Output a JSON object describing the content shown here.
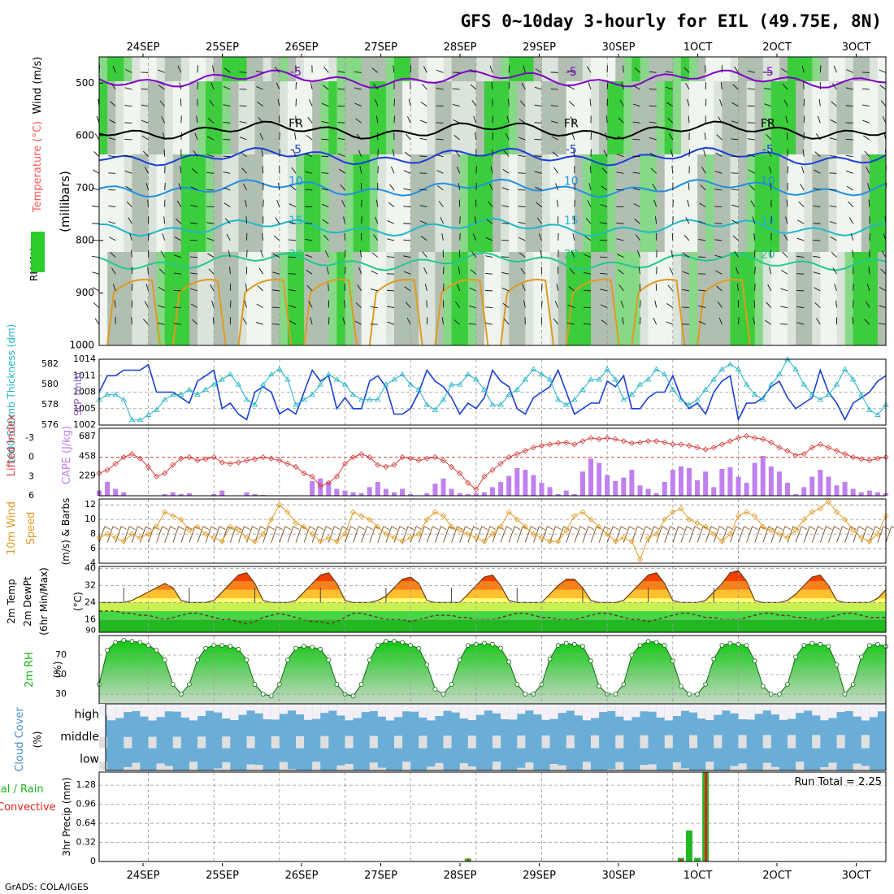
{
  "title": "GFS 0~10day 3-hourly for EIL (49.75E, 8N)",
  "footer": "GrADS: COLA/IGES",
  "dates": [
    "24SEP",
    "25SEP",
    "26SEP",
    "27SEP",
    "28SEP",
    "29SEP",
    "30SEP",
    "1OCT",
    "2OCT",
    "3OCT"
  ],
  "colors": {
    "frame": "#000000",
    "grid": "#9a9a9a",
    "purple": "#8000c8",
    "blue": "#1a3fd6",
    "cyan": "#20b4c8",
    "green_rh": "#2ccc2c",
    "orange": "#e09a20",
    "lifted": "#d83c3c",
    "cape": "#c080f0",
    "sky": "#6aaed8"
  },
  "chart_data": [
    {
      "panel": "upper_air",
      "type": "heatmap",
      "ylabel": "(millibars)",
      "side_labels": [
        "RH (%)",
        "Temperature (°C)",
        "Wind (m/s)"
      ],
      "y_ticks": [
        500,
        600,
        700,
        800,
        900,
        1000
      ],
      "ylim": [
        1000,
        450
      ],
      "isotherms": [
        {
          "label": "-5",
          "pressure_mb": 492
        },
        {
          "label": "FR",
          "pressure_mb": 590
        },
        {
          "label": "-5",
          "pressure_mb": 640
        },
        {
          "label": "10",
          "pressure_mb": 700
        },
        {
          "label": "15",
          "pressure_mb": 775
        },
        {
          "label": "20",
          "pressure_mb": 840
        }
      ]
    },
    {
      "panel": "slp_thickness",
      "type": "line",
      "ylabel_left": "1000-500mb Thickness (dm)",
      "ylabel_right": "SLP (mb)",
      "left_ticks": [
        576,
        578,
        580,
        582
      ],
      "right_ticks": [
        1002,
        1005,
        1008,
        1011,
        1014
      ],
      "series": [
        {
          "name": "SLP (mb)",
          "values": [
            1008,
            1011,
            1011,
            1012,
            1012,
            1012,
            1013,
            1008,
            1008,
            1008,
            1007,
            1006,
            1010,
            1011,
            1012,
            1005,
            1006,
            1004,
            1003,
            1008,
            1009,
            1008,
            1004,
            1005,
            1004,
            1008,
            1012,
            1010,
            1011,
            1005,
            1007,
            1005,
            1005,
            1010,
            1011,
            1009,
            1004,
            1004,
            1005,
            1008,
            1012,
            1010,
            1009,
            1007,
            1004,
            1006,
            1005,
            1007,
            1012,
            1010,
            1009,
            1005,
            1004,
            1007,
            1008,
            1009,
            1012,
            1008,
            1004,
            1005,
            1006,
            1006,
            1010,
            1009,
            1011,
            1005,
            1005,
            1007,
            1008,
            1008,
            1011,
            1007,
            1005,
            1006,
            1004,
            1008,
            1010,
            1011,
            1003,
            1006,
            1006,
            1007,
            1009,
            1010,
            1007,
            1005,
            1006,
            1007,
            1012,
            1008,
            1006,
            1003,
            1006,
            1007,
            1008,
            1010,
            1011
          ]
        },
        {
          "name": "1000-500mb Thickness (dm)",
          "values": [
            578.5,
            579,
            579,
            578.5,
            576.5,
            576.5,
            577,
            577.5,
            578.5,
            579,
            579,
            579.5,
            579,
            579.5,
            580,
            580.5,
            581,
            580,
            578.5,
            578,
            580,
            581,
            581.5,
            580.5,
            578,
            578.5,
            579,
            580,
            581,
            580.5,
            580,
            579,
            578.5,
            578.5,
            578.5,
            580,
            580.5,
            581,
            580,
            579.5,
            578,
            577.5,
            578.5,
            580,
            580,
            581,
            580.5,
            579.5,
            578,
            578,
            579,
            579.5,
            580.5,
            581.5,
            581,
            580.5,
            578.5,
            578,
            578.5,
            579.5,
            580.5,
            580.5,
            581.5,
            580.5,
            578.5,
            579,
            580,
            580.5,
            581.5,
            581,
            579.5,
            578.5,
            578,
            578.5,
            579.5,
            580.5,
            581.5,
            582,
            581.5,
            580,
            579,
            578.5,
            580,
            581,
            582.5,
            581.5,
            580,
            579,
            578.5,
            579,
            580,
            581.5,
            580.5,
            579,
            577.5,
            577,
            578
          ]
        }
      ]
    },
    {
      "panel": "cape_li",
      "type": "bar",
      "ylabel_left": "Lifted Index",
      "ylabel_right": "CAPE (J/kg)",
      "li_ticks": [
        -3,
        0,
        3,
        6
      ],
      "cape_ticks": [
        229,
        458,
        687
      ],
      "cape_values": [
        60,
        160,
        80,
        40,
        0,
        0,
        0,
        0,
        20,
        40,
        20,
        30,
        0,
        0,
        20,
        60,
        0,
        0,
        40,
        20,
        10,
        0,
        0,
        0,
        0,
        0,
        170,
        200,
        160,
        80,
        60,
        40,
        30,
        100,
        160,
        80,
        40,
        80,
        20,
        0,
        30,
        140,
        200,
        80,
        30,
        20,
        30,
        40,
        100,
        160,
        230,
        320,
        300,
        240,
        150,
        100,
        20,
        60,
        20,
        280,
        430,
        380,
        240,
        170,
        210,
        300,
        120,
        80,
        30,
        160,
        300,
        340,
        320,
        180,
        280,
        100,
        310,
        330,
        220,
        150,
        380,
        460,
        340,
        280,
        150,
        20,
        100,
        220,
        300,
        220,
        120,
        160,
        80,
        40,
        60,
        40,
        30
      ],
      "li_values": [
        2.5,
        2,
        1,
        0,
        -0.5,
        0.2,
        1.5,
        3,
        2.5,
        1.2,
        0.2,
        0,
        0.5,
        0.3,
        0,
        0.8,
        1,
        0.8,
        0.5,
        0.3,
        0,
        0.2,
        0.5,
        1,
        1.5,
        2.5,
        3,
        4.5,
        4,
        3,
        1,
        0,
        -0.5,
        0,
        1.2,
        1.5,
        1.2,
        0,
        0.2,
        0.5,
        0.2,
        0,
        0.5,
        1.5,
        2.5,
        4,
        5,
        3,
        2,
        1,
        0,
        -0.5,
        -1,
        -1.5,
        -1.8,
        -2,
        -2.2,
        -2.3,
        -2,
        -2.5,
        -3,
        -2.8,
        -3,
        -2.8,
        -2.5,
        -2.2,
        -2.3,
        -2.5,
        -2.5,
        -2.3,
        -2,
        -2,
        -1.8,
        -1.5,
        -1.2,
        -1.5,
        -2,
        -2.5,
        -3,
        -3.3,
        -3,
        -2.8,
        -2.3,
        -1.5,
        -1.0,
        -0.3,
        -0.5,
        -1.5,
        -2,
        -1.5,
        -1,
        -0.5,
        0,
        0.3,
        0.5,
        0.2,
        0
      ]
    },
    {
      "panel": "wind10m",
      "type": "line",
      "ylabel": "10m Wind Speed & Barbs (m/s)",
      "y_ticks": [
        4,
        6,
        8,
        10,
        12
      ],
      "series": [
        {
          "name": "10m Wind Speed",
          "values": [
            7.5,
            8,
            7.5,
            7,
            8,
            7.5,
            8,
            9,
            11,
            10.5,
            10,
            8.5,
            9,
            8,
            7.5,
            7,
            9,
            8.5,
            7.5,
            7,
            8,
            10,
            12,
            11,
            9.5,
            9,
            8,
            7,
            7.5,
            7,
            8,
            11,
            10.5,
            10,
            9,
            8,
            7.5,
            7,
            7.5,
            8,
            10,
            11,
            10.5,
            9,
            8.5,
            8,
            7.5,
            7,
            8,
            9,
            11,
            10,
            9,
            8,
            7.5,
            7,
            7,
            8.5,
            10.5,
            11,
            10,
            9,
            8,
            7,
            7.5,
            7,
            4.5,
            7.5,
            8,
            10,
            11,
            11.5,
            10,
            9.5,
            9,
            8,
            7,
            8,
            10.5,
            11,
            10.5,
            9,
            8.5,
            8,
            7.5,
            8.5,
            10,
            11,
            11.5,
            12.5,
            11,
            10,
            8.5,
            7.5,
            7,
            8,
            10.5
          ]
        }
      ]
    },
    {
      "panel": "temp2m",
      "type": "area",
      "ylabel": "2m Temp / 2m DewPt / (6hr Min/Max) (°C)",
      "y_ticks": [
        16,
        24,
        32,
        40
      ],
      "series": [
        {
          "name": "2m Temp",
          "values": [
            24,
            24,
            24,
            24,
            25,
            27,
            29,
            31,
            33,
            31,
            25,
            24,
            24,
            24,
            25,
            29,
            33,
            37,
            38,
            33,
            25,
            24,
            24,
            24,
            25,
            29,
            33,
            37,
            38,
            33,
            25,
            24,
            24,
            24,
            25,
            27,
            31,
            35,
            36,
            33,
            25,
            24,
            24,
            24,
            24,
            28,
            32,
            36,
            37,
            32,
            25,
            24,
            24,
            24,
            24,
            28,
            32,
            35,
            35,
            31,
            25,
            24,
            24,
            24,
            25,
            29,
            33,
            37,
            38,
            33,
            25,
            24,
            24,
            24,
            25,
            29,
            33,
            38,
            39,
            34,
            25,
            24,
            24,
            24,
            25,
            28,
            32,
            36,
            37,
            32,
            25,
            24,
            24,
            24,
            24,
            26,
            30
          ]
        },
        {
          "name": "2m DewPt",
          "values": [
            20,
            20,
            20,
            19,
            19,
            18,
            18,
            17,
            16,
            17,
            18,
            19,
            19,
            18,
            17,
            16,
            16,
            15,
            14,
            15,
            17,
            18,
            19,
            18,
            17,
            16,
            15,
            15,
            14,
            15,
            17,
            19,
            19,
            18,
            17,
            16,
            16,
            16,
            15,
            16,
            17,
            18,
            18,
            18,
            17,
            17,
            16,
            16,
            16,
            17,
            18,
            19,
            19,
            18,
            17,
            17,
            16,
            16,
            16,
            17,
            18,
            19,
            19,
            18,
            17,
            16,
            16,
            15,
            16,
            17,
            18,
            19,
            19,
            18,
            17,
            17,
            16,
            16,
            16,
            17,
            18,
            19,
            19,
            18,
            18,
            17,
            17,
            16,
            16,
            17,
            18,
            19,
            19,
            18,
            17,
            17,
            17
          ]
        }
      ]
    },
    {
      "panel": "rh2m",
      "type": "area",
      "ylabel": "2m RH (%)",
      "y_ticks": [
        30,
        50,
        70
      ],
      "series": [
        {
          "name": "2m RH",
          "values": [
            40,
            75,
            83,
            85,
            84,
            83,
            80,
            75,
            65,
            40,
            30,
            40,
            65,
            77,
            80,
            80,
            79,
            76,
            65,
            40,
            30,
            28,
            40,
            65,
            77,
            79,
            78,
            76,
            65,
            40,
            30,
            28,
            40,
            65,
            80,
            84,
            84,
            83,
            80,
            77,
            60,
            35,
            30,
            40,
            65,
            80,
            81,
            82,
            81,
            77,
            63,
            40,
            30,
            30,
            40,
            66,
            80,
            82,
            81,
            79,
            64,
            38,
            30,
            30,
            40,
            70,
            80,
            84,
            83,
            80,
            64,
            38,
            30,
            30,
            40,
            66,
            80,
            82,
            81,
            80,
            64,
            38,
            30,
            30,
            40,
            68,
            80,
            82,
            81,
            79,
            60,
            30,
            40,
            68,
            80,
            81,
            79
          ]
        }
      ]
    },
    {
      "panel": "cloud_cover",
      "type": "heatmap",
      "ylabel": "Cloud Cover (%)",
      "layers": [
        "high",
        "middle",
        "low"
      ]
    },
    {
      "panel": "precip",
      "type": "bar",
      "ylabel_left": "Total / Rain",
      "ylabel_left2": "Convective",
      "ylabel": "3hr Precip (mm)",
      "y_ticks": [
        0,
        0.32,
        0.64,
        0.96,
        1.28
      ],
      "ylim": [
        0,
        1.5
      ],
      "annotation": "Run Total = 2.25",
      "bars": [
        {
          "index": 45,
          "total": 0.05,
          "convective": 0.04
        },
        {
          "index": 71,
          "total": 0.06,
          "convective": 0.04
        },
        {
          "index": 72,
          "total": 0.52,
          "convective": 0.0
        },
        {
          "index": 73,
          "total": 0.06,
          "convective": 0.0
        },
        {
          "index": 74,
          "total": 1.5,
          "convective": 1.5
        }
      ]
    }
  ]
}
